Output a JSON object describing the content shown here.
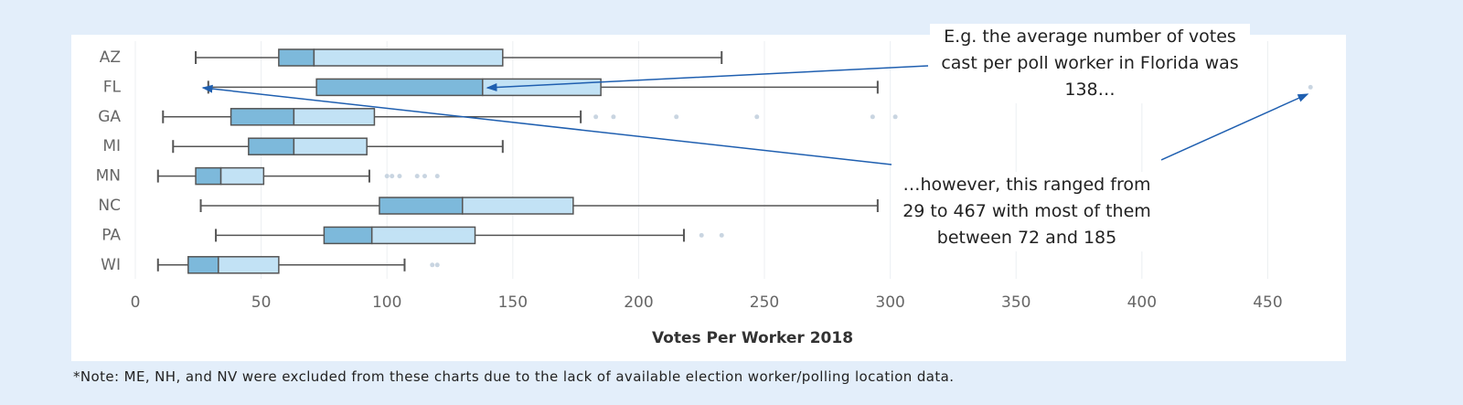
{
  "chart_data": {
    "type": "box",
    "orientation": "horizontal",
    "x_label": "Votes Per Worker 2018",
    "categories": [
      "AZ",
      "FL",
      "GA",
      "MI",
      "MN",
      "NC",
      "PA",
      "WI"
    ],
    "boxes": [
      {
        "low": 24,
        "q1": 57,
        "median": 71,
        "q3": 146,
        "high": 233,
        "outliers": []
      },
      {
        "low": 29,
        "q1": 72,
        "median": 138,
        "q3": 185,
        "high": 295,
        "outliers": [
          467
        ]
      },
      {
        "low": 11,
        "q1": 38,
        "median": 63,
        "q3": 95,
        "high": 177,
        "outliers": [
          183,
          190,
          215,
          247,
          293,
          302
        ]
      },
      {
        "low": 15,
        "q1": 45,
        "median": 63,
        "q3": 92,
        "high": 146,
        "outliers": []
      },
      {
        "low": 9,
        "q1": 24,
        "median": 34,
        "q3": 51,
        "high": 93,
        "outliers": [
          100,
          102,
          105,
          112,
          115,
          120
        ]
      },
      {
        "low": 26,
        "q1": 97,
        "median": 130,
        "q3": 174,
        "high": 295,
        "outliers": []
      },
      {
        "low": 32,
        "q1": 75,
        "median": 94,
        "q3": 135,
        "high": 218,
        "outliers": [
          225,
          233
        ]
      },
      {
        "low": 9,
        "q1": 21,
        "median": 33,
        "q3": 57,
        "high": 107,
        "outliers": [
          118,
          120
        ]
      }
    ],
    "lower_box_color": "#7db9db",
    "upper_box_color": "#c2e2f5",
    "xlim": [
      0,
      480
    ],
    "xticks": [
      0,
      50,
      100,
      150,
      200,
      250,
      300,
      350,
      400,
      450
    ],
    "grid": true,
    "annotations": [
      "E.g. the average number of votes cast per poll worker in Florida was 138…",
      "…however, this ranged from 29 to 467 with most of them between 72 and 185"
    ],
    "note": "*Note: ME, NH, and NV were excluded from these charts due to the lack of available election worker/polling location data."
  }
}
